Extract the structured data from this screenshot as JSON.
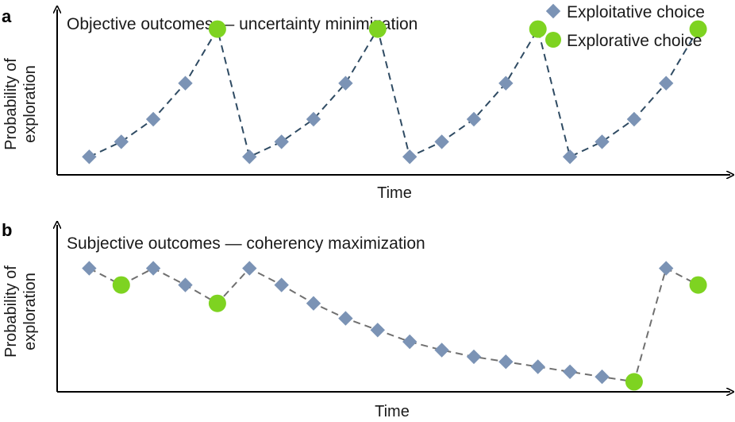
{
  "colors": {
    "exploit": "#7b93b5",
    "explore": "#7ed321",
    "line_a": "#2f4b63",
    "line_b": "#707070"
  },
  "legend": {
    "exploit_label": "Exploitative choice",
    "explore_label": "Explorative choice"
  },
  "chart_data": [
    {
      "type": "line",
      "panel": "a",
      "title": "Objective outcomes — uncertainty minimization",
      "xlabel": "Time",
      "ylabel": [
        "Probability of",
        "exploration"
      ],
      "xlim": [
        0,
        21
      ],
      "ylim": [
        0,
        1.1
      ],
      "x": [
        1,
        2,
        3,
        4,
        5,
        6,
        7,
        8,
        9,
        10,
        11,
        12,
        13,
        14,
        15,
        16,
        17,
        18,
        19,
        20
      ],
      "y": [
        0.12,
        0.22,
        0.37,
        0.61,
        0.97,
        0.12,
        0.22,
        0.37,
        0.61,
        0.97,
        0.12,
        0.22,
        0.37,
        0.61,
        0.97,
        0.12,
        0.22,
        0.37,
        0.61,
        0.97
      ],
      "choice": [
        "exploit",
        "exploit",
        "exploit",
        "exploit",
        "explore",
        "exploit",
        "exploit",
        "exploit",
        "exploit",
        "explore",
        "exploit",
        "exploit",
        "exploit",
        "exploit",
        "explore",
        "exploit",
        "exploit",
        "exploit",
        "exploit",
        "explore"
      ]
    },
    {
      "type": "line",
      "panel": "b",
      "title": "Subjective outcomes — coherency maximization",
      "xlabel": "Time",
      "ylabel": [
        "Probability of",
        "exploration"
      ],
      "xlim": [
        0,
        21
      ],
      "ylim": [
        0,
        1.0
      ],
      "x": [
        1,
        2,
        3,
        4,
        5,
        6,
        7,
        8,
        9,
        10,
        11,
        12,
        13,
        14,
        15,
        16,
        17,
        18,
        19,
        20
      ],
      "y": [
        0.74,
        0.64,
        0.74,
        0.64,
        0.53,
        0.74,
        0.64,
        0.53,
        0.44,
        0.37,
        0.3,
        0.25,
        0.21,
        0.18,
        0.15,
        0.12,
        0.09,
        0.06,
        0.74,
        0.64
      ],
      "choice": [
        "exploit",
        "explore",
        "exploit",
        "exploit",
        "explore",
        "exploit",
        "exploit",
        "exploit",
        "exploit",
        "exploit",
        "exploit",
        "exploit",
        "exploit",
        "exploit",
        "exploit",
        "exploit",
        "exploit",
        "explore",
        "exploit",
        "explore"
      ]
    }
  ]
}
